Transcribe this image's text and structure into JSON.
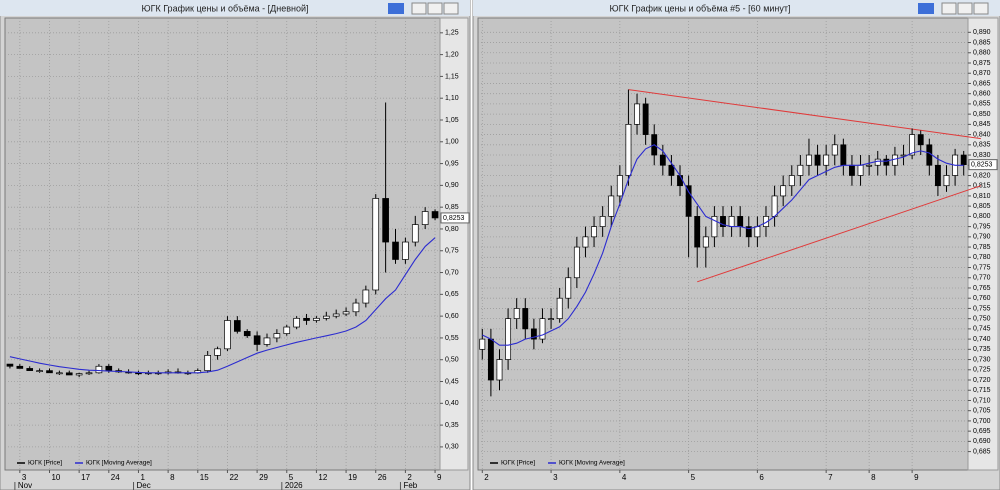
{
  "chart_data": [
    {
      "type": "candlestick",
      "title": "ЮГК График цены и объёма - [Дневной]",
      "categories": [
        null,
        "3",
        null,
        null,
        "10",
        null,
        null,
        "17",
        null,
        null,
        "24",
        null,
        null,
        "1",
        null,
        null,
        "8",
        null,
        null,
        "15",
        null,
        null,
        "22",
        null,
        null,
        "29",
        null,
        null,
        "5",
        null,
        null,
        "12",
        null,
        null,
        "19",
        null,
        null,
        "26",
        null,
        null,
        "2",
        null,
        null,
        "9"
      ],
      "month_labels": [
        null,
        "Nov",
        null,
        null,
        null,
        null,
        null,
        null,
        null,
        null,
        null,
        null,
        null,
        "Dec",
        null,
        null,
        null,
        null,
        null,
        null,
        null,
        null,
        null,
        null,
        null,
        null,
        null,
        null,
        "2026",
        null,
        null,
        null,
        null,
        null,
        null,
        null,
        null,
        null,
        null,
        null,
        "Feb",
        null,
        null,
        null
      ],
      "series": [
        {
          "name": "ЮГК [Price]",
          "type": "candlestick",
          "color": "#000000",
          "open": [
            0.49,
            0.485,
            0.48,
            0.475,
            0.475,
            0.47,
            0.47,
            0.465,
            0.468,
            0.47,
            0.485,
            0.475,
            0.472,
            0.47,
            0.468,
            0.47,
            0.47,
            0.472,
            0.47,
            0.47,
            0.475,
            0.51,
            0.525,
            0.59,
            0.565,
            0.555,
            0.535,
            0.55,
            0.56,
            0.575,
            0.595,
            0.59,
            0.595,
            0.6,
            0.605,
            0.61,
            0.63,
            0.66,
            0.87,
            0.77,
            0.73,
            0.77,
            0.81,
            0.84
          ],
          "high": [
            0.49,
            0.49,
            0.485,
            0.48,
            0.48,
            0.475,
            0.475,
            0.47,
            0.475,
            0.49,
            0.49,
            0.48,
            0.478,
            0.475,
            0.475,
            0.475,
            0.478,
            0.48,
            0.475,
            0.48,
            0.52,
            0.53,
            0.6,
            0.6,
            0.57,
            0.565,
            0.56,
            0.57,
            0.58,
            0.6,
            0.605,
            0.6,
            0.61,
            0.615,
            0.62,
            0.64,
            0.67,
            0.88,
            1.09,
            0.8,
            0.78,
            0.83,
            0.85,
            0.845
          ],
          "low": [
            0.48,
            0.48,
            0.475,
            0.47,
            0.47,
            0.465,
            0.465,
            0.46,
            0.465,
            0.468,
            0.47,
            0.47,
            0.468,
            0.465,
            0.465,
            0.465,
            0.466,
            0.468,
            0.465,
            0.468,
            0.47,
            0.5,
            0.52,
            0.56,
            0.55,
            0.52,
            0.53,
            0.54,
            0.555,
            0.57,
            0.58,
            0.585,
            0.59,
            0.595,
            0.6,
            0.6,
            0.62,
            0.65,
            0.7,
            0.72,
            0.72,
            0.76,
            0.8,
            0.82
          ],
          "close": [
            0.485,
            0.48,
            0.475,
            0.475,
            0.47,
            0.47,
            0.465,
            0.468,
            0.47,
            0.485,
            0.475,
            0.472,
            0.47,
            0.468,
            0.47,
            0.47,
            0.472,
            0.47,
            0.47,
            0.475,
            0.51,
            0.525,
            0.59,
            0.565,
            0.555,
            0.535,
            0.55,
            0.56,
            0.575,
            0.595,
            0.59,
            0.595,
            0.6,
            0.605,
            0.61,
            0.63,
            0.66,
            0.87,
            0.77,
            0.73,
            0.77,
            0.81,
            0.84,
            0.8253
          ]
        },
        {
          "name": "ЮГК [Moving Average]",
          "type": "line",
          "color": "#2c2cd0",
          "values": [
            0.507,
            0.502,
            0.497,
            0.492,
            0.488,
            0.484,
            0.481,
            0.478,
            0.476,
            0.475,
            0.474,
            0.473,
            0.472,
            0.471,
            0.47,
            0.47,
            0.47,
            0.47,
            0.47,
            0.47,
            0.472,
            0.476,
            0.485,
            0.495,
            0.505,
            0.515,
            0.522,
            0.528,
            0.534,
            0.54,
            0.545,
            0.55,
            0.555,
            0.56,
            0.566,
            0.575,
            0.59,
            0.615,
            0.64,
            0.66,
            0.695,
            0.73,
            0.76,
            0.78
          ]
        }
      ],
      "last_price": {
        "value": 0.8253,
        "label": "0,8253"
      },
      "ylim": [
        0.247,
        1.284
      ],
      "yticks": [
        {
          "value": 0.3,
          "label": "0,30"
        },
        {
          "value": 0.35,
          "label": "0,35"
        },
        {
          "value": 0.4,
          "label": "0,40"
        },
        {
          "value": 0.45,
          "label": "0,45"
        },
        {
          "value": 0.5,
          "label": "0,50"
        },
        {
          "value": 0.55,
          "label": "0,55"
        },
        {
          "value": 0.6,
          "label": "0,60"
        },
        {
          "value": 0.65,
          "label": "0,65"
        },
        {
          "value": 0.7,
          "label": "0,70"
        },
        {
          "value": 0.75,
          "label": "0,75"
        },
        {
          "value": 0.8,
          "label": "0,80"
        },
        {
          "value": 0.85,
          "label": "0,85"
        },
        {
          "value": 0.9,
          "label": "0,90"
        },
        {
          "value": 0.95,
          "label": "0,95"
        },
        {
          "value": 1.0,
          "label": "1,00"
        },
        {
          "value": 1.05,
          "label": "1,05"
        },
        {
          "value": 1.1,
          "label": "1,10"
        },
        {
          "value": 1.15,
          "label": "1,15"
        },
        {
          "value": 1.2,
          "label": "1,20"
        },
        {
          "value": 1.25,
          "label": "1,25"
        }
      ],
      "grid": true,
      "legend": "bottom-left",
      "trend_lines": []
    },
    {
      "type": "candlestick",
      "title": "ЮГК График цены и объёма #5 - [60 минут]",
      "categories": [
        "2",
        null,
        null,
        null,
        null,
        null,
        null,
        null,
        "3",
        null,
        null,
        null,
        null,
        null,
        null,
        null,
        "4",
        null,
        null,
        null,
        null,
        null,
        null,
        null,
        "5",
        null,
        null,
        null,
        null,
        null,
        null,
        null,
        "6",
        null,
        null,
        null,
        null,
        null,
        null,
        null,
        "7",
        null,
        null,
        null,
        null,
        "8",
        null,
        null,
        null,
        null,
        "9",
        null,
        null,
        null,
        null,
        null,
        null
      ],
      "series": [
        {
          "name": "ЮГК [Price]",
          "type": "candlestick",
          "color": "#000000",
          "open": [
            0.735,
            0.74,
            0.72,
            0.73,
            0.75,
            0.755,
            0.745,
            0.74,
            0.75,
            0.75,
            0.76,
            0.77,
            0.785,
            0.79,
            0.795,
            0.8,
            0.81,
            0.82,
            0.845,
            0.855,
            0.84,
            0.83,
            0.825,
            0.82,
            0.815,
            0.8,
            0.785,
            0.79,
            0.8,
            0.795,
            0.8,
            0.795,
            0.79,
            0.795,
            0.8,
            0.81,
            0.815,
            0.82,
            0.825,
            0.83,
            0.825,
            0.83,
            0.835,
            0.825,
            0.82,
            0.825,
            0.825,
            0.828,
            0.825,
            0.83,
            0.83,
            0.84,
            0.835,
            0.825,
            0.815,
            0.82,
            0.83
          ],
          "high": [
            0.745,
            0.745,
            0.735,
            0.755,
            0.76,
            0.76,
            0.75,
            0.755,
            0.755,
            0.765,
            0.775,
            0.79,
            0.795,
            0.8,
            0.805,
            0.815,
            0.825,
            0.862,
            0.86,
            0.858,
            0.845,
            0.835,
            0.83,
            0.825,
            0.82,
            0.805,
            0.795,
            0.805,
            0.805,
            0.805,
            0.805,
            0.8,
            0.8,
            0.805,
            0.815,
            0.82,
            0.825,
            0.83,
            0.838,
            0.835,
            0.835,
            0.84,
            0.838,
            0.83,
            0.83,
            0.83,
            0.832,
            0.83,
            0.834,
            0.835,
            0.843,
            0.842,
            0.838,
            0.83,
            0.825,
            0.833,
            0.832
          ],
          "low": [
            0.73,
            0.712,
            0.715,
            0.725,
            0.745,
            0.74,
            0.735,
            0.738,
            0.745,
            0.748,
            0.755,
            0.765,
            0.78,
            0.785,
            0.79,
            0.795,
            0.805,
            0.815,
            0.84,
            0.835,
            0.825,
            0.82,
            0.815,
            0.81,
            0.78,
            0.775,
            0.775,
            0.785,
            0.79,
            0.79,
            0.79,
            0.785,
            0.785,
            0.79,
            0.795,
            0.805,
            0.81,
            0.815,
            0.82,
            0.82,
            0.82,
            0.825,
            0.82,
            0.815,
            0.815,
            0.82,
            0.82,
            0.82,
            0.82,
            0.825,
            0.828,
            0.83,
            0.82,
            0.81,
            0.812,
            0.815,
            0.82
          ],
          "close": [
            0.74,
            0.72,
            0.73,
            0.75,
            0.755,
            0.745,
            0.74,
            0.75,
            0.75,
            0.76,
            0.77,
            0.785,
            0.79,
            0.795,
            0.8,
            0.81,
            0.82,
            0.845,
            0.855,
            0.84,
            0.83,
            0.825,
            0.82,
            0.815,
            0.8,
            0.785,
            0.79,
            0.8,
            0.795,
            0.8,
            0.795,
            0.79,
            0.795,
            0.8,
            0.81,
            0.815,
            0.82,
            0.825,
            0.83,
            0.825,
            0.83,
            0.835,
            0.825,
            0.82,
            0.825,
            0.825,
            0.828,
            0.825,
            0.83,
            0.83,
            0.84,
            0.835,
            0.825,
            0.815,
            0.82,
            0.83,
            0.8253
          ]
        },
        {
          "name": "ЮГК [Moving Average]",
          "type": "line",
          "color": "#2c2cd0",
          "values": [
            0.742,
            0.74,
            0.737,
            0.737,
            0.738,
            0.74,
            0.741,
            0.742,
            0.744,
            0.746,
            0.75,
            0.756,
            0.763,
            0.772,
            0.782,
            0.795,
            0.806,
            0.818,
            0.828,
            0.833,
            0.835,
            0.832,
            0.826,
            0.82,
            0.812,
            0.806,
            0.8,
            0.798,
            0.796,
            0.795,
            0.795,
            0.794,
            0.795,
            0.797,
            0.8,
            0.804,
            0.808,
            0.813,
            0.818,
            0.82,
            0.822,
            0.824,
            0.825,
            0.825,
            0.825,
            0.826,
            0.827,
            0.827,
            0.828,
            0.829,
            0.831,
            0.832,
            0.831,
            0.828,
            0.826,
            0.825,
            0.825
          ]
        }
      ],
      "last_price": {
        "value": 0.8253,
        "label": "0,8253"
      },
      "ylim": [
        0.676,
        0.897
      ],
      "yticks": [
        {
          "value": 0.685,
          "label": "0,685"
        },
        {
          "value": 0.69,
          "label": "0,690"
        },
        {
          "value": 0.695,
          "label": "0,695"
        },
        {
          "value": 0.7,
          "label": "0,700"
        },
        {
          "value": 0.705,
          "label": "0,705"
        },
        {
          "value": 0.71,
          "label": "0,710"
        },
        {
          "value": 0.715,
          "label": "0,715"
        },
        {
          "value": 0.72,
          "label": "0,720"
        },
        {
          "value": 0.725,
          "label": "0,725"
        },
        {
          "value": 0.73,
          "label": "0,730"
        },
        {
          "value": 0.735,
          "label": "0,735"
        },
        {
          "value": 0.74,
          "label": "0,740"
        },
        {
          "value": 0.745,
          "label": "0,745"
        },
        {
          "value": 0.75,
          "label": "0,750"
        },
        {
          "value": 0.755,
          "label": "0,755"
        },
        {
          "value": 0.76,
          "label": "0,760"
        },
        {
          "value": 0.765,
          "label": "0,765"
        },
        {
          "value": 0.77,
          "label": "0,770"
        },
        {
          "value": 0.775,
          "label": "0,775"
        },
        {
          "value": 0.78,
          "label": "0,780"
        },
        {
          "value": 0.785,
          "label": "0,785"
        },
        {
          "value": 0.79,
          "label": "0,790"
        },
        {
          "value": 0.795,
          "label": "0,795"
        },
        {
          "value": 0.8,
          "label": "0,800"
        },
        {
          "value": 0.805,
          "label": "0,805"
        },
        {
          "value": 0.81,
          "label": "0,810"
        },
        {
          "value": 0.815,
          "label": "0,815"
        },
        {
          "value": 0.82,
          "label": "0,820"
        },
        {
          "value": 0.825,
          "label": "0,825"
        },
        {
          "value": 0.83,
          "label": "0,830"
        },
        {
          "value": 0.835,
          "label": "0,835"
        },
        {
          "value": 0.84,
          "label": "0,840"
        },
        {
          "value": 0.845,
          "label": "0,845"
        },
        {
          "value": 0.85,
          "label": "0,850"
        },
        {
          "value": 0.855,
          "label": "0,855"
        },
        {
          "value": 0.86,
          "label": "0,860"
        },
        {
          "value": 0.865,
          "label": "0,865"
        },
        {
          "value": 0.87,
          "label": "0,870"
        },
        {
          "value": 0.875,
          "label": "0,875"
        },
        {
          "value": 0.88,
          "label": "0,880"
        },
        {
          "value": 0.885,
          "label": "0,885"
        },
        {
          "value": 0.89,
          "label": "0,890"
        }
      ],
      "grid": true,
      "legend": "bottom-left",
      "trend_lines": [
        {
          "color": "#e03a3a",
          "x": [
            17,
            58
          ],
          "y": [
            0.862,
            0.838
          ]
        },
        {
          "color": "#e03a3a",
          "x": [
            25,
            58
          ],
          "y": [
            0.768,
            0.815
          ]
        }
      ]
    }
  ]
}
